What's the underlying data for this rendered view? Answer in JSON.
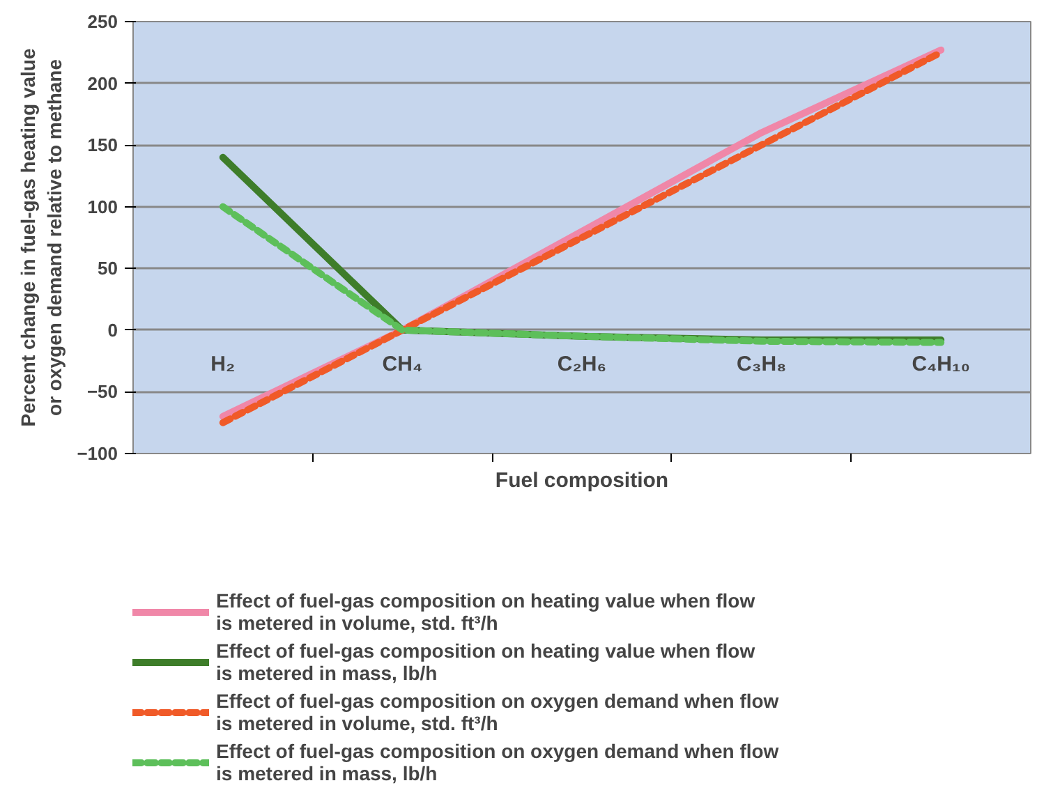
{
  "chart_data": {
    "type": "line",
    "xlabel": "Fuel composition",
    "ylabel": "Percent change in fuel-gas heating value or oxygen demand relative to methane",
    "categories": [
      "H₂",
      "CH₄",
      "C₂H₆",
      "C₃H₈",
      "C₄H₁₀"
    ],
    "ylim": [
      -100,
      250
    ],
    "yticks": [
      -100,
      -50,
      0,
      50,
      100,
      150,
      200,
      250
    ],
    "grid": "y",
    "legend": "bottom",
    "marker": "none",
    "series": [
      {
        "name": "Effect of fuel-gas composition on heating value when flow is metered in volume, std. ft³/h",
        "color": "#f087a8",
        "line_style": "solid",
        "values": [
          -70,
          0,
          80,
          160,
          227
        ]
      },
      {
        "name": "Effect of fuel-gas composition on heating value when flow is metered in mass, lb/h",
        "color": "#3e7d2a",
        "line_style": "solid",
        "values": [
          140,
          0,
          -5,
          -8,
          -8
        ]
      },
      {
        "name": "Effect of fuel-gas composition on oxygen demand when flow is metered in volume, std. ft³/h",
        "color": "#f05a28",
        "line_style": "dashed",
        "values": [
          -75,
          0,
          75,
          150,
          225
        ]
      },
      {
        "name": "Effect of fuel-gas composition on oxygen demand when flow is metered in mass, lb/h",
        "color": "#5dbf5a",
        "line_style": "dashed",
        "values": [
          100,
          0,
          -5,
          -9,
          -10
        ]
      }
    ]
  }
}
